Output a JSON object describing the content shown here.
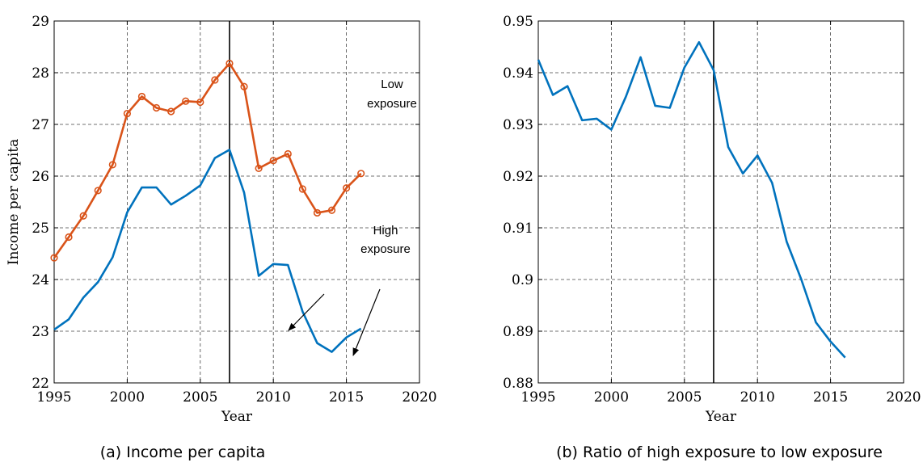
{
  "chart_data": [
    {
      "type": "line",
      "caption": "(a) Income per capita",
      "xlabel": "Year",
      "ylabel": "Income per capita",
      "xlim": [
        1995,
        2020
      ],
      "ylim": [
        22,
        29
      ],
      "xticks": [
        1995,
        2000,
        2005,
        2010,
        2015,
        2020
      ],
      "yticks": [
        22,
        23,
        24,
        25,
        26,
        27,
        28,
        29
      ],
      "grid": true,
      "vline": 2007,
      "series": [
        {
          "key": "low",
          "color": "#d95319",
          "markers": true,
          "x": [
            1995,
            1996,
            1997,
            1998,
            1999,
            2000,
            2001,
            2002,
            2003,
            2004,
            2005,
            2006,
            2007,
            2008,
            2009,
            2010,
            2011,
            2012,
            2013,
            2014,
            2015,
            2016
          ],
          "values": [
            24.42,
            24.82,
            25.23,
            25.72,
            26.22,
            27.21,
            27.54,
            27.32,
            27.25,
            27.45,
            27.43,
            27.86,
            28.18,
            27.73,
            26.15,
            26.3,
            26.43,
            25.75,
            25.29,
            25.34,
            25.77,
            26.05
          ]
        },
        {
          "key": "high",
          "color": "#0072bd",
          "markers": false,
          "x": [
            1995,
            1996,
            1997,
            1998,
            1999,
            2000,
            2001,
            2002,
            2003,
            2004,
            2005,
            2006,
            2007,
            2008,
            2009,
            2010,
            2011,
            2012,
            2013,
            2014,
            2015,
            2016
          ],
          "values": [
            23.03,
            23.23,
            23.65,
            23.95,
            24.43,
            25.3,
            25.78,
            25.78,
            25.45,
            25.62,
            25.82,
            26.35,
            26.51,
            25.68,
            24.07,
            24.3,
            24.28,
            23.38,
            22.77,
            22.6,
            22.88,
            23.05
          ]
        }
      ],
      "annotations": [
        {
          "key": "low",
          "lines": [
            "Low",
            "exposure"
          ]
        },
        {
          "key": "high",
          "lines": [
            "High",
            "exposure"
          ]
        }
      ]
    },
    {
      "type": "line",
      "caption": "(b) Ratio of high exposure to low exposure",
      "xlabel": "Year",
      "ylabel": "",
      "xlim": [
        1995,
        2020
      ],
      "ylim": [
        0.88,
        0.95
      ],
      "xticks": [
        1995,
        2000,
        2005,
        2010,
        2015,
        2020
      ],
      "yticks": [
        0.88,
        0.89,
        0.9,
        0.91,
        0.92,
        0.93,
        0.94,
        0.95
      ],
      "ytick_labels": [
        "0.88",
        "0.89",
        "0.9",
        "0.91",
        "0.92",
        "0.93",
        "0.94",
        "0.95"
      ],
      "grid": true,
      "vline": 2007,
      "series": [
        {
          "key": "ratio",
          "color": "#0072bd",
          "markers": false,
          "x": [
            1995,
            1996,
            1997,
            1998,
            1999,
            2000,
            2001,
            2002,
            2003,
            2004,
            2005,
            2006,
            2007,
            2008,
            2009,
            2010,
            2011,
            2012,
            2013,
            2014,
            2015,
            2016
          ],
          "values": [
            0.9425,
            0.9357,
            0.9374,
            0.9308,
            0.9311,
            0.929,
            0.9354,
            0.943,
            0.9336,
            0.9332,
            0.941,
            0.9459,
            0.9405,
            0.9256,
            0.9205,
            0.924,
            0.9187,
            0.9073,
            0.9,
            0.8917,
            0.888,
            0.8849
          ]
        }
      ]
    }
  ]
}
